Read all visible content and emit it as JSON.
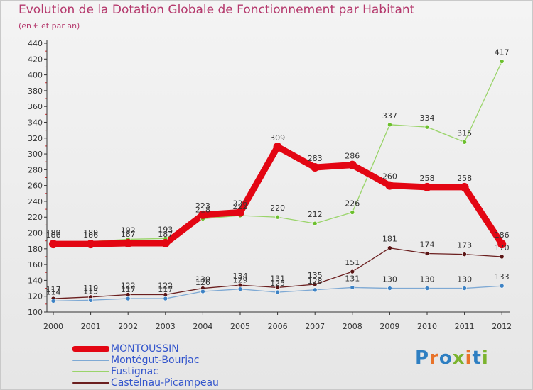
{
  "title": "Evolution de la Dotation Globale de Fonctionnement par Habitant",
  "subtitle": "(en € et par an)",
  "logo": "Proxiti",
  "colors": {
    "title": "#b5396d",
    "axis": "#333333",
    "grid_tick": "#d03030"
  },
  "chart_data": {
    "type": "line",
    "title": "Evolution de la Dotation Globale de Fonctionnement par Habitant",
    "subtitle": "(en € et par an)",
    "xlabel": "",
    "ylabel": "",
    "ylim": [
      100,
      440
    ],
    "yticks": [
      100,
      120,
      140,
      160,
      180,
      200,
      220,
      240,
      260,
      280,
      300,
      320,
      340,
      360,
      380,
      400,
      420,
      440
    ],
    "categories": [
      "2000",
      "2001",
      "2002",
      "2003",
      "2004",
      "2005",
      "2006",
      "2007",
      "2008",
      "2009",
      "2010",
      "2011",
      "2012"
    ],
    "legend_position": "bottom-left",
    "series": [
      {
        "name": "Castelnau-Picampeau",
        "color": "#6b1f1f",
        "marker": "#5a1515",
        "width": 1.3,
        "values": [
          117,
          119,
          122,
          122,
          130,
          134,
          131,
          135,
          151,
          181,
          174,
          173,
          170
        ]
      },
      {
        "name": "Montégut-Bourjac",
        "color": "#7ea9d4",
        "marker": "#3d82c4",
        "width": 1.3,
        "values": [
          114,
          115,
          117,
          117,
          126,
          129,
          125,
          128,
          131,
          130,
          130,
          130,
          133
        ]
      },
      {
        "name": "Fustignac",
        "color": "#9ad46a",
        "marker": "#6cbf2e",
        "width": 1.3,
        "values": [
          189,
          189,
          192,
          193,
          218,
          222,
          220,
          212,
          226,
          337,
          334,
          315,
          417
        ]
      },
      {
        "name": "MONTOUSSIN",
        "color": "#e30613",
        "marker": "#e30613",
        "width": 9,
        "values": [
          186,
          186,
          187,
          187,
          223,
          226,
          309,
          283,
          286,
          260,
          258,
          258,
          186
        ]
      }
    ]
  },
  "legend": [
    {
      "name": "MONTOUSSIN",
      "color": "#e30613",
      "text_color": "#3355cc"
    },
    {
      "name": "Montégut-Bourjac",
      "color": "#7ea9d4",
      "text_color": "#3355cc"
    },
    {
      "name": "Fustignac",
      "color": "#9ad46a",
      "text_color": "#3355cc"
    },
    {
      "name": "Castelnau-Picampeau",
      "color": "#6b1f1f",
      "text_color": "#3355cc"
    }
  ]
}
